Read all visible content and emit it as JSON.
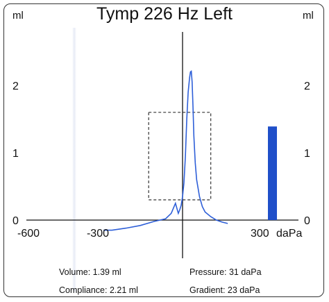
{
  "chart_data": {
    "type": "line",
    "title": "Tymp 226 Hz Left",
    "y_unit_left": "ml",
    "y_unit_right": "ml",
    "x_unit": "daPa",
    "xlim": [
      -600,
      400
    ],
    "ylim": [
      0,
      3
    ],
    "x_ticks": [
      {
        "value": -600,
        "label": "-600"
      },
      {
        "value": -300,
        "label": "-300"
      },
      {
        "value": 300,
        "label": "300"
      }
    ],
    "y_ticks": [
      {
        "value": 0,
        "label": "0"
      },
      {
        "value": 1,
        "label": "1"
      },
      {
        "value": 2,
        "label": "2"
      }
    ],
    "series": [
      {
        "color": "#2e5fd8",
        "x": [
          -280,
          -250,
          -200,
          -150,
          -100,
          -60,
          -40,
          -25,
          -15,
          -10,
          -5,
          0,
          5,
          10,
          15,
          20,
          25,
          28,
          31,
          34,
          37,
          40,
          45,
          50,
          60,
          70,
          80,
          100,
          120,
          140,
          160
        ],
        "y": [
          -0.15,
          -0.15,
          -0.12,
          -0.08,
          -0.02,
          0.02,
          0.1,
          0.25,
          0.1,
          0.15,
          0.22,
          0.35,
          0.55,
          0.95,
          1.5,
          1.9,
          2.12,
          2.2,
          2.21,
          2.05,
          1.7,
          1.25,
          0.85,
          0.6,
          0.35,
          0.2,
          0.12,
          0.05,
          0.0,
          -0.03,
          -0.05
        ]
      }
    ],
    "normal_region": {
      "x": [
        -120,
        100
      ],
      "y": [
        0.3,
        1.6
      ]
    },
    "volume_bar": {
      "value": 1.39,
      "color": "#1f4fc9"
    }
  },
  "info": {
    "volume": "Volume: 1.39 ml",
    "pressure": "Pressure: 31 daPa",
    "compliance": "Compliance: 2.21 ml",
    "gradient": "Gradient: 23 daPa"
  }
}
